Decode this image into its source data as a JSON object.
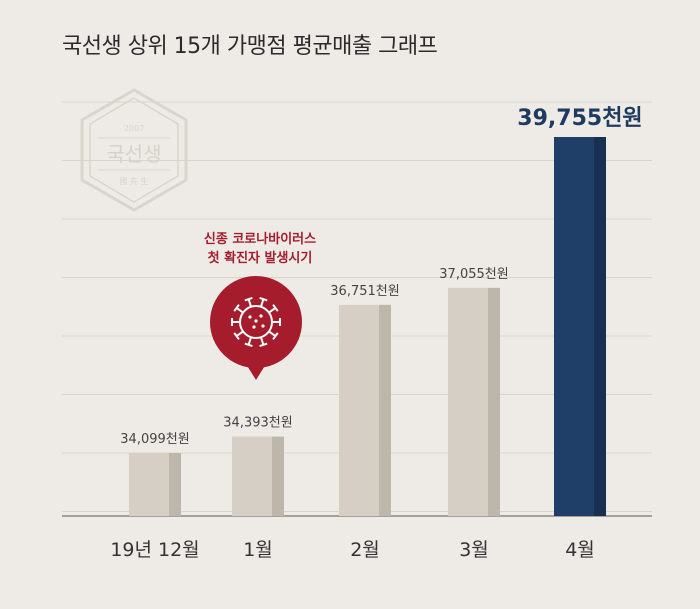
{
  "chart_data": {
    "type": "bar",
    "title": "국선생 상위 15개 가맹점 평균매출 그래프",
    "categories": [
      "19년 12월",
      "1월",
      "2월",
      "3월",
      "4월"
    ],
    "values": [
      34099,
      34393,
      36751,
      37055,
      39755
    ],
    "value_labels": [
      "34,099천원",
      "34,393천원",
      "36,751천원",
      "37,055천원",
      "39,755천원"
    ],
    "highlight_index": 4,
    "colors": {
      "bar": "#d5cfc6",
      "bar_shade": "#bdb6ab",
      "highlight": "#1f3e68",
      "highlight_shade": "#172f50",
      "callout": "#a51d2d",
      "background": "#eeebe7",
      "grid": "#d9d4cd"
    },
    "grid": true,
    "annotation": {
      "line1": "신종 코로나바이러스",
      "line2": "첫 확진자 발생시기",
      "icon": "coronavirus-icon",
      "category_index": 1
    }
  },
  "watermark": {
    "year": "2007",
    "brand": "국선생",
    "sub": "國 先 生"
  }
}
